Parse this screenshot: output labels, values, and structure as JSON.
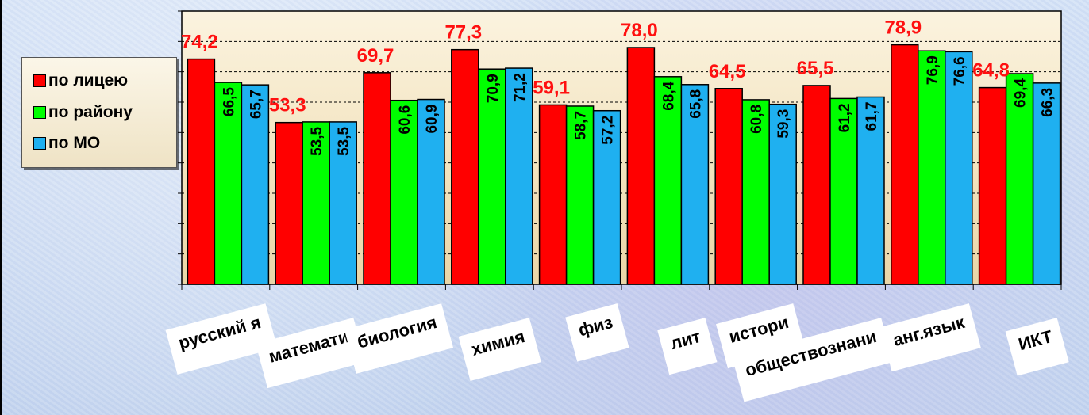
{
  "chart_data": {
    "type": "bar",
    "categories": [
      "русский я",
      "математи",
      "биология",
      "химия",
      "физ",
      "лит",
      "истори",
      "обществознани",
      "анг.язык",
      "ИКТ"
    ],
    "series": [
      {
        "name": "по лицею",
        "color": "#ff0000",
        "values": [
          74.2,
          53.3,
          69.7,
          77.3,
          59.1,
          78.0,
          64.5,
          65.5,
          78.9,
          64.8
        ]
      },
      {
        "name": "по району",
        "color": "#00ff00",
        "values": [
          66.5,
          53.5,
          60.6,
          70.9,
          58.7,
          68.4,
          60.8,
          61.2,
          76.9,
          69.4
        ]
      },
      {
        "name": "по МО",
        "color": "#1fb0f0",
        "values": [
          65.7,
          53.5,
          60.9,
          71.2,
          57.2,
          65.8,
          59.3,
          61.7,
          76.6,
          66.3
        ]
      }
    ],
    "data_labels": [
      [
        "74,2",
        "53,3",
        "69,7",
        "77,3",
        "59,1",
        "78,0",
        "64,5",
        "65,5",
        "78,9",
        "64,8"
      ],
      [
        "66,5",
        "53,5",
        "60,6",
        "70,9",
        "58,7",
        "68,4",
        "60,8",
        "61,2",
        "76,9",
        "69,4"
      ],
      [
        "65,7",
        "53,5",
        "60,9",
        "71,2",
        "57,2",
        "65,8",
        "59,3",
        "61,7",
        "76,6",
        "66,3"
      ]
    ],
    "ylim": [
      0,
      90
    ],
    "grid": true,
    "legend_position": "left",
    "title": "",
    "xlabel": "",
    "ylabel": ""
  }
}
